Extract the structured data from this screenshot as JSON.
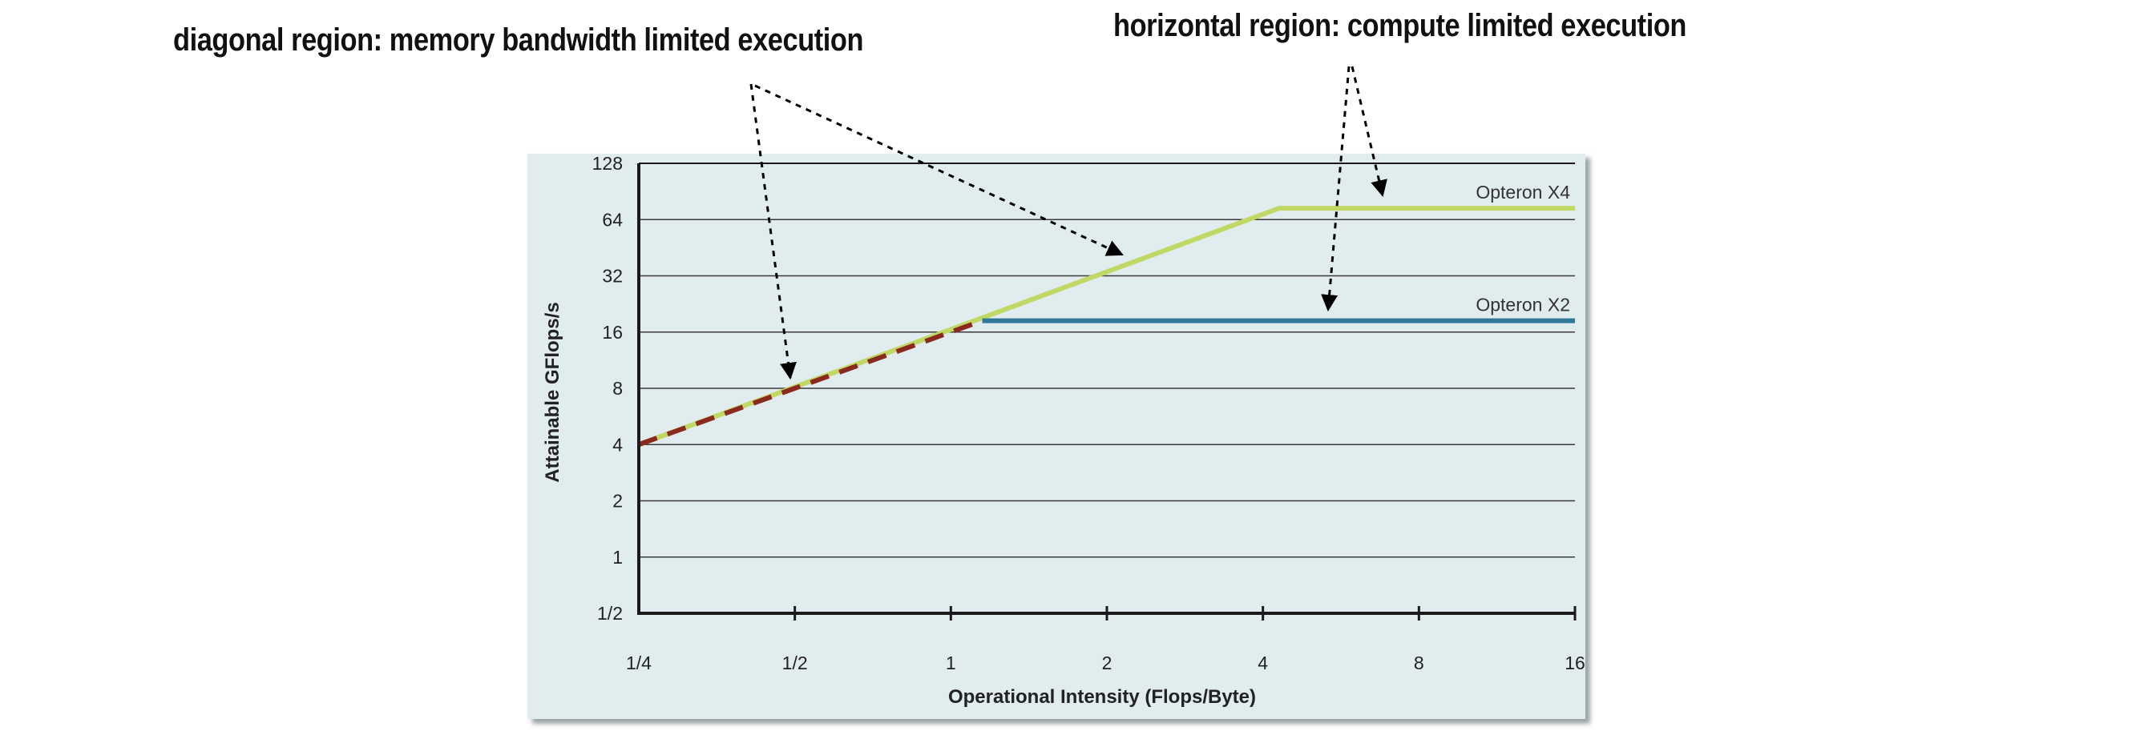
{
  "annotations": {
    "diagonal": "diagonal region: memory bandwidth limited execution",
    "horizontal": "horizontal region: compute limited execution"
  },
  "chart_data": {
    "type": "line",
    "title": "",
    "xlabel": "Operational Intensity (Flops/Byte)",
    "ylabel": "Attainable GFlops/s",
    "x_scale": "log2",
    "y_scale": "log2",
    "xlim": [
      0.25,
      16
    ],
    "ylim": [
      0.5,
      128
    ],
    "x_ticks": [
      0.25,
      0.5,
      1,
      2,
      4,
      8,
      16
    ],
    "x_tick_labels": [
      "1/4",
      "1/2",
      "1",
      "2",
      "4",
      "8",
      "16"
    ],
    "y_ticks": [
      0.5,
      1,
      2,
      4,
      8,
      16,
      32,
      64,
      128
    ],
    "y_tick_labels": [
      "1/2",
      "1",
      "2",
      "4",
      "8",
      "16",
      "32",
      "64",
      "128"
    ],
    "grid": true,
    "series": [
      {
        "name": "Opteron X4",
        "color": "#c2d865",
        "style": "solid",
        "x": [
          0.25,
          4.3,
          16
        ],
        "y": [
          4,
          73.6,
          73.6
        ]
      },
      {
        "name": "Opteron X2",
        "color": "#2f7898",
        "style": "solid",
        "x": [
          1.15,
          16
        ],
        "y": [
          18.4,
          18.4
        ]
      },
      {
        "name": "",
        "color": "#8a2a1e",
        "style": "dashed",
        "x": [
          0.25,
          1.15
        ],
        "y": [
          4,
          18.4
        ]
      }
    ],
    "background": "#e1ecee"
  }
}
